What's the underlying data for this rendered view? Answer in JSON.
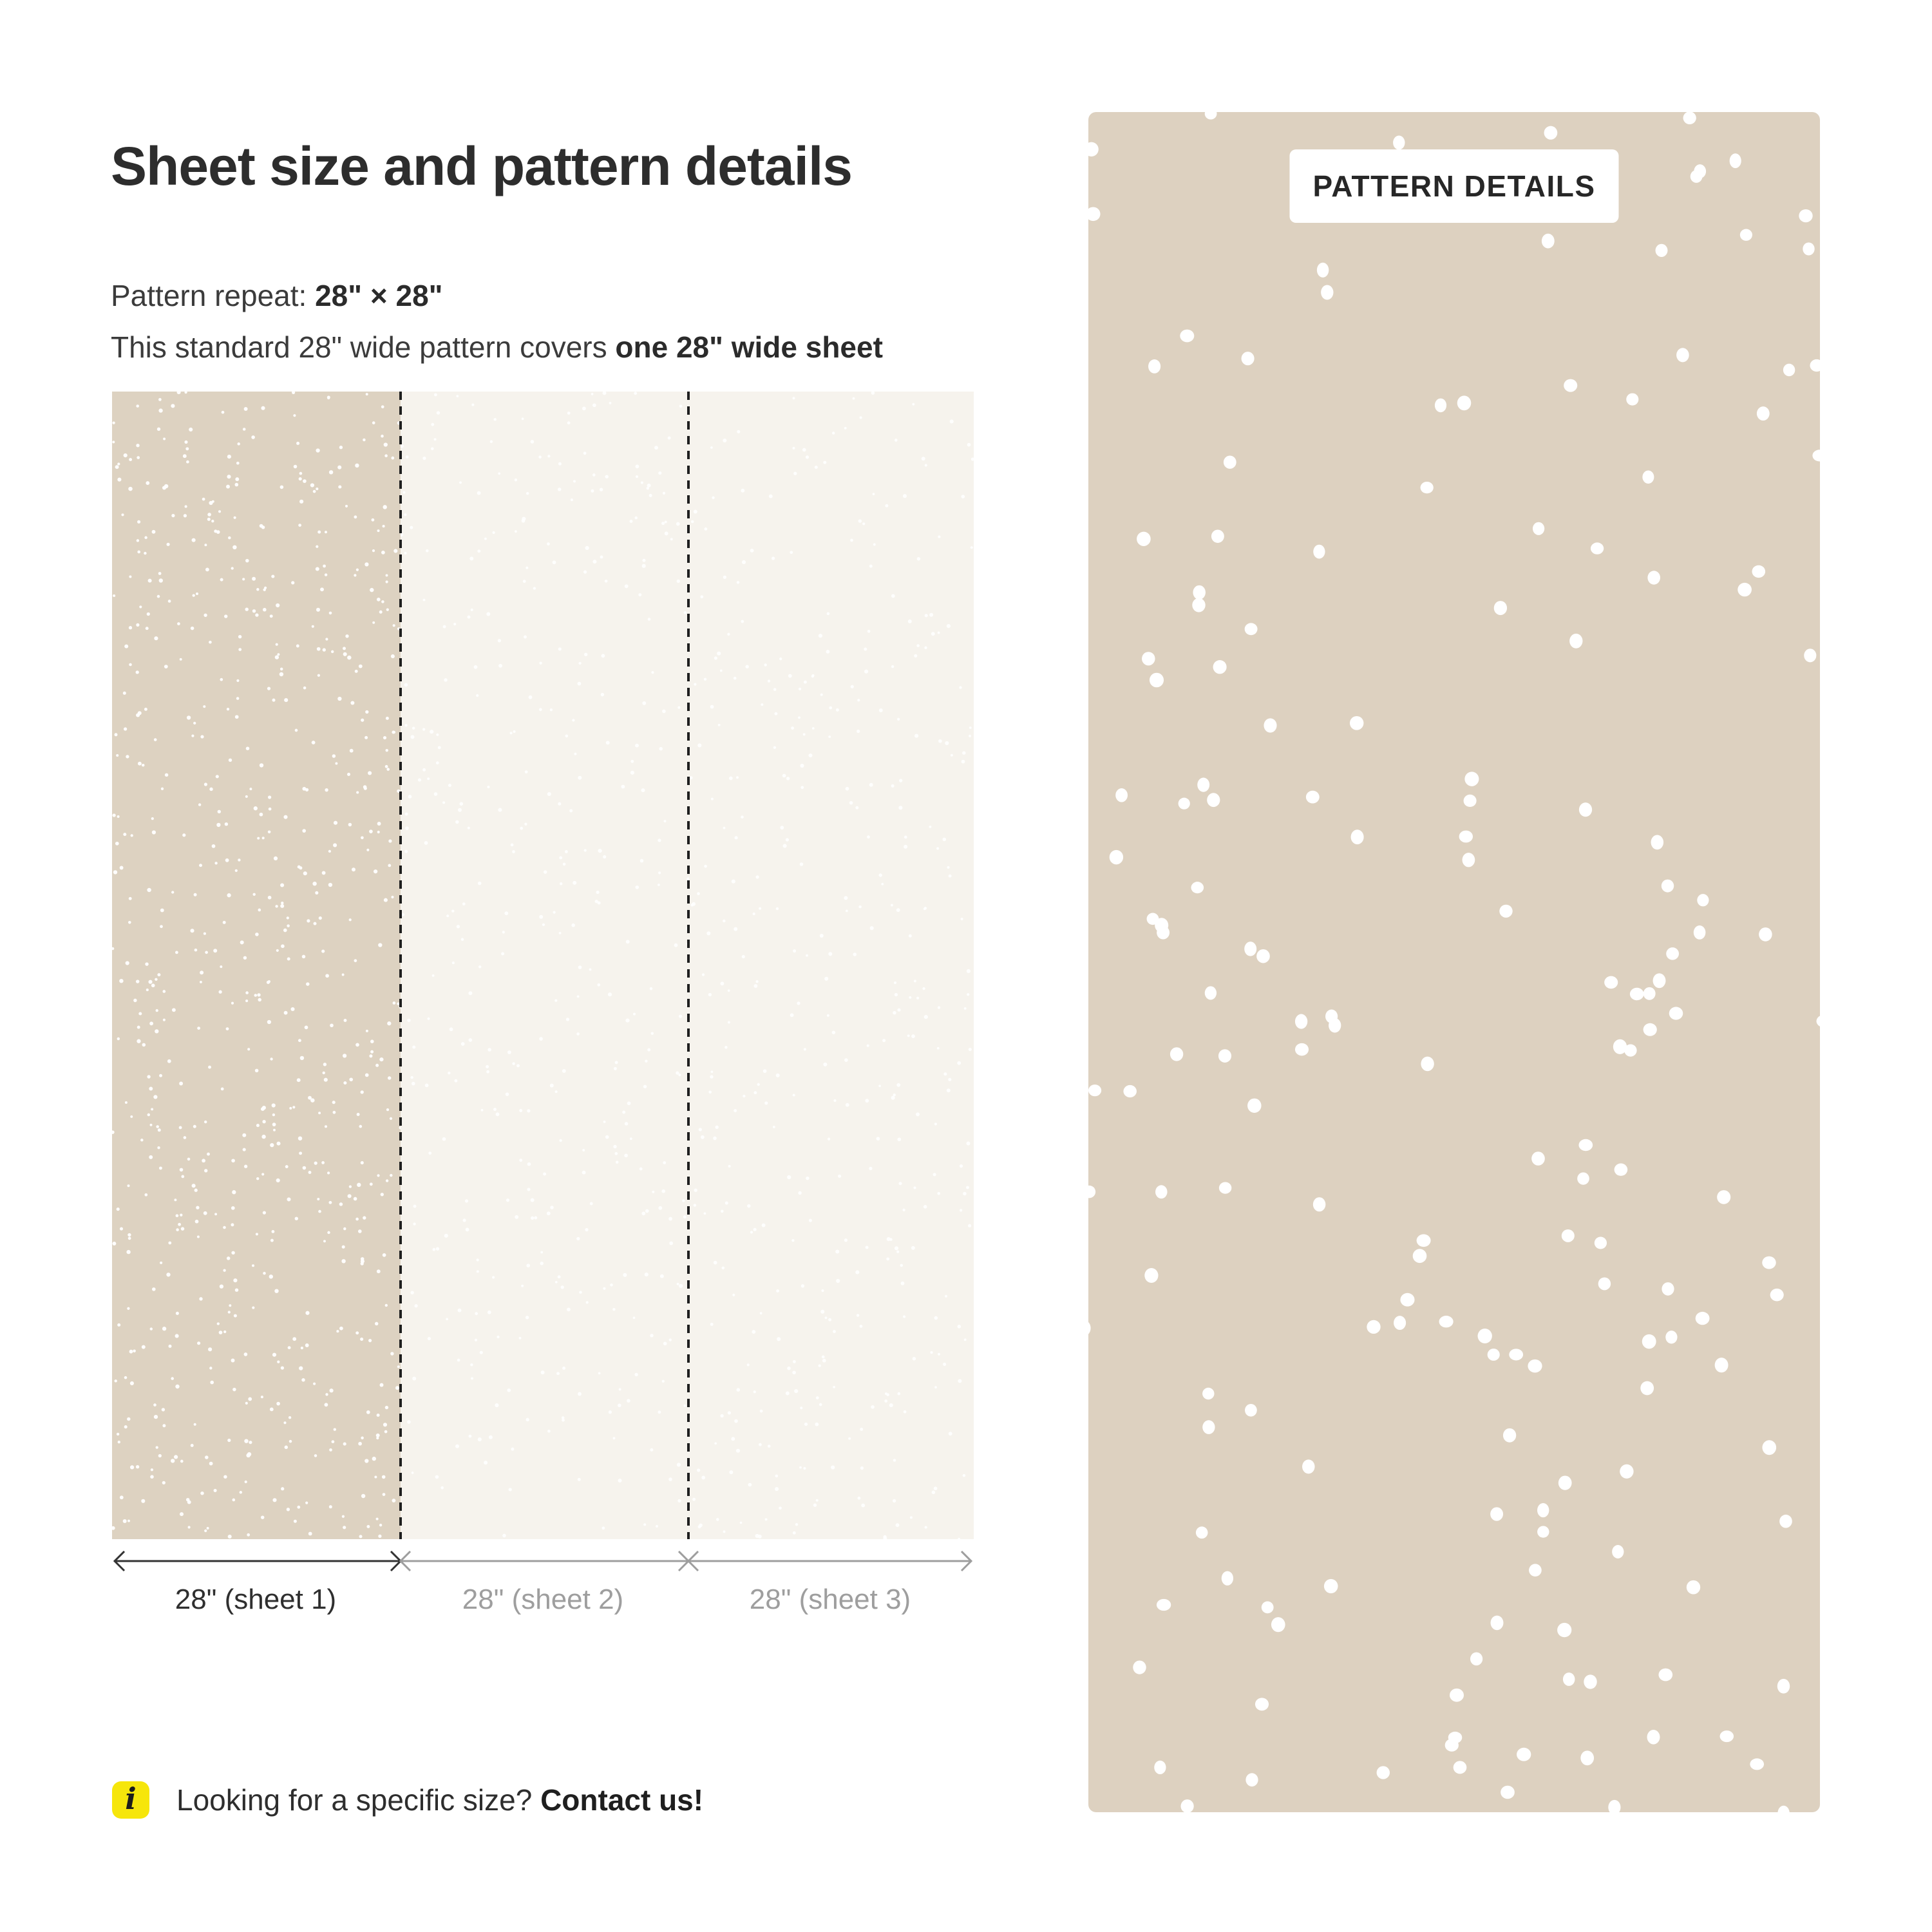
{
  "header": {
    "title": "Sheet size and pattern details"
  },
  "details": {
    "repeat_label": "Pattern repeat: ",
    "repeat_value": "28\" × 28\"",
    "coverage_text": "This standard 28\" wide pattern covers ",
    "coverage_bold": "one 28\" wide sheet"
  },
  "diagram": {
    "sheets": [
      {
        "label": "28\" (sheet 1)",
        "emphasis": true
      },
      {
        "label": "28\" (sheet 2)",
        "emphasis": false
      },
      {
        "label": "28\" (sheet 3)",
        "emphasis": false
      }
    ],
    "colors": {
      "sheet1_fill": "#ddd2c1",
      "other_sheet_fill": "#f6f3ed",
      "speck": "#ffffff",
      "divider": "#1f1f1f",
      "ruler_dark": "#333333",
      "ruler_gray": "#9e9e9e"
    }
  },
  "preview": {
    "badge_label": "PATTERN DETAILS",
    "panel_fill": "#ddd1c0",
    "dot_color": "#ffffff"
  },
  "footer": {
    "info_icon_glyph": "i",
    "info_icon_bg": "#f6e60b",
    "text": "Looking for a specific size? ",
    "link_text": "Contact us!"
  }
}
